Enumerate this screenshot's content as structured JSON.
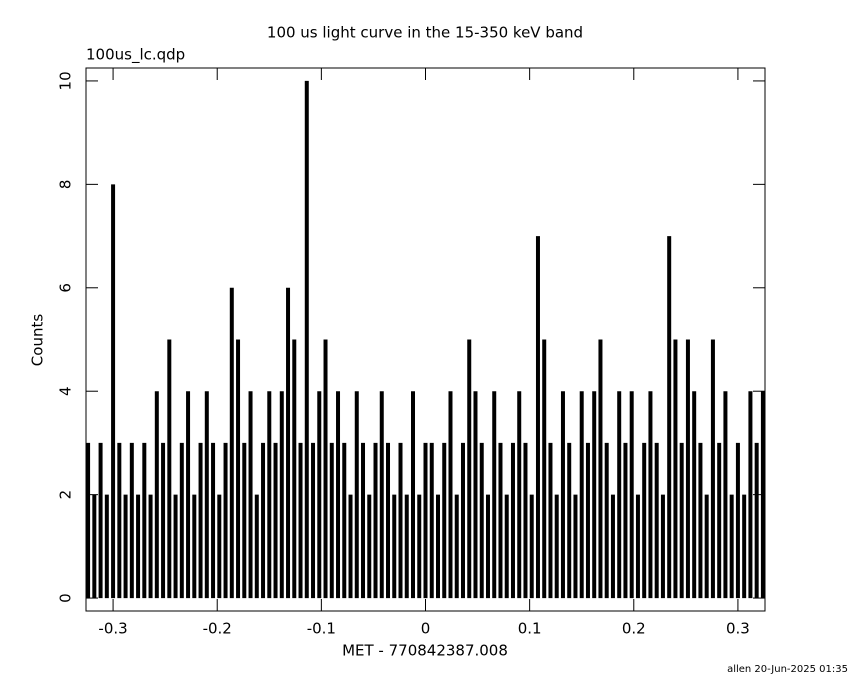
{
  "chart_data": {
    "type": "bar",
    "title": "100 us light curve in the 15-350 keV band",
    "subtitle": "100us_lc.qdp",
    "xlabel": "MET - 770842387.008",
    "ylabel": "Counts",
    "footer": "allen 20-Jun-2025 01:35",
    "color": "#000000",
    "x": [
      -0.324,
      -0.318,
      -0.312,
      -0.306,
      -0.3,
      -0.294,
      -0.288,
      -0.282,
      -0.276,
      -0.27,
      -0.264,
      -0.258,
      -0.252,
      -0.246,
      -0.24,
      -0.234,
      -0.228,
      -0.222,
      -0.216,
      -0.21,
      -0.204,
      -0.198,
      -0.192,
      -0.186,
      -0.18,
      -0.174,
      -0.168,
      -0.162,
      -0.156,
      -0.15,
      -0.144,
      -0.138,
      -0.132,
      -0.126,
      -0.12,
      -0.114,
      -0.108,
      -0.102,
      -0.096,
      -0.09,
      -0.084,
      -0.078,
      -0.072,
      -0.066,
      -0.06,
      -0.054,
      -0.048,
      -0.042,
      -0.036,
      -0.03,
      -0.024,
      -0.018,
      -0.012,
      -0.006,
      0,
      0.006,
      0.012,
      0.018,
      0.024,
      0.03,
      0.036,
      0.042,
      0.048,
      0.054,
      0.06,
      0.066,
      0.072,
      0.078,
      0.084,
      0.09,
      0.096,
      0.102,
      0.108,
      0.114,
      0.12,
      0.126,
      0.132,
      0.138,
      0.144,
      0.15,
      0.156,
      0.162,
      0.168,
      0.174,
      0.18,
      0.186,
      0.192,
      0.198,
      0.204,
      0.21,
      0.216,
      0.222,
      0.228,
      0.234,
      0.24,
      0.246,
      0.252,
      0.258,
      0.264,
      0.27,
      0.276,
      0.282,
      0.288,
      0.294,
      0.3,
      0.306,
      0.312,
      0.318,
      0.324
    ],
    "values": [
      3,
      2,
      3,
      2,
      8,
      3,
      2,
      3,
      2,
      3,
      2,
      4,
      3,
      5,
      2,
      3,
      4,
      2,
      3,
      4,
      3,
      2,
      3,
      6,
      5,
      3,
      4,
      2,
      3,
      4,
      3,
      4,
      6,
      5,
      3,
      10,
      3,
      4,
      5,
      3,
      4,
      3,
      2,
      4,
      3,
      2,
      3,
      4,
      3,
      2,
      3,
      2,
      4,
      2,
      3,
      3,
      2,
      3,
      4,
      2,
      3,
      5,
      4,
      3,
      2,
      4,
      3,
      2,
      3,
      4,
      3,
      2,
      7,
      5,
      3,
      2,
      4,
      3,
      2,
      4,
      3,
      4,
      5,
      3,
      2,
      4,
      3,
      4,
      2,
      3,
      4,
      3,
      2,
      7,
      5,
      3,
      5,
      4,
      3,
      2,
      5,
      3,
      4,
      2,
      3,
      2,
      4,
      3,
      4
    ],
    "xlim": [
      -0.326,
      0.326
    ],
    "ylim": [
      -0.25,
      10.25
    ],
    "xticks": [
      -0.3,
      -0.2,
      -0.1,
      0,
      0.1,
      0.2,
      0.3
    ],
    "yticks": [
      0,
      2,
      4,
      6,
      8,
      10
    ]
  }
}
